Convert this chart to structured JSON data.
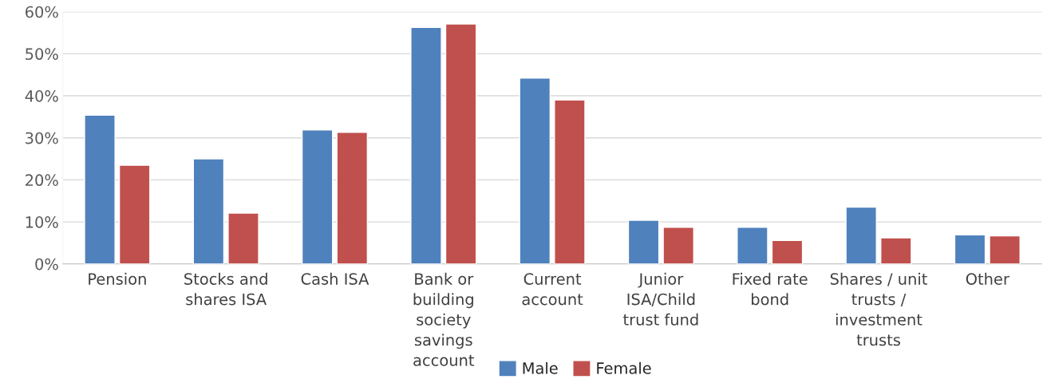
{
  "chart_data": {
    "type": "bar",
    "categories": [
      "Pension",
      "Stocks and\nshares ISA",
      "Cash ISA",
      "Bank or\nbuilding\nsociety\nsavings\naccount",
      "Current\naccount",
      "Junior\nISA/Child\ntrust fund",
      "Fixed rate\nbond",
      "Shares / unit\ntrusts /\ninvestment\ntrusts",
      "Other"
    ],
    "series": [
      {
        "name": "Male",
        "color": "#4f81bd",
        "values": [
          35.4,
          25.0,
          31.9,
          56.3,
          44.2,
          10.4,
          8.7,
          13.5,
          6.9
        ]
      },
      {
        "name": "Female",
        "color": "#c0504d",
        "values": [
          23.5,
          12.1,
          31.3,
          57.1,
          39.0,
          8.7,
          5.6,
          6.2,
          6.7
        ]
      }
    ],
    "ylim": [
      0,
      60
    ],
    "yticks": [
      {
        "value": 0,
        "label": "0%"
      },
      {
        "value": 10,
        "label": "10%"
      },
      {
        "value": 20,
        "label": "20%"
      },
      {
        "value": 30,
        "label": "30%"
      },
      {
        "value": 40,
        "label": "40%"
      },
      {
        "value": 50,
        "label": "50%"
      },
      {
        "value": 60,
        "label": "60%"
      }
    ],
    "grid": "y",
    "legend": "bottom"
  }
}
